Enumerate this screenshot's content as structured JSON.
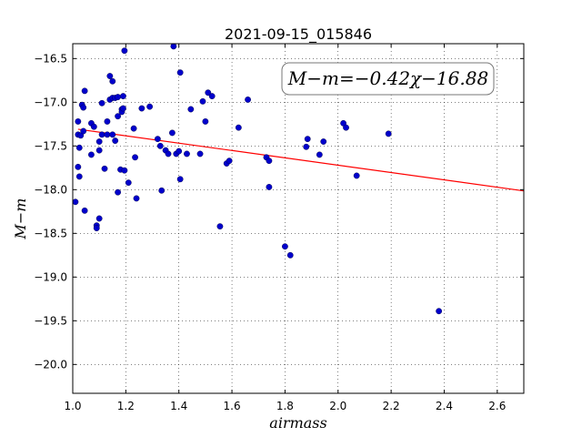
{
  "chart_data": {
    "type": "scatter",
    "title": "2021-09-15_015846",
    "xlabel": "airmass",
    "ylabel": "M−m",
    "xlim": [
      1.0,
      2.7
    ],
    "ylim": [
      -20.33,
      -16.33
    ],
    "y_inverted": true,
    "grid": true,
    "x_ticks": [
      1.0,
      1.2,
      1.4,
      1.6,
      1.8,
      2.0,
      2.2,
      2.4,
      2.6
    ],
    "x_tick_labels": [
      "1.0",
      "1.2",
      "1.4",
      "1.6",
      "1.8",
      "2.0",
      "2.2",
      "2.4",
      "2.6"
    ],
    "y_ticks": [
      -16.5,
      -17.0,
      -17.5,
      -18.0,
      -18.5,
      -19.0,
      -19.5,
      -20.0
    ],
    "y_tick_labels": [
      "−16.5",
      "−17.0",
      "−17.5",
      "−18.0",
      "−18.5",
      "−19.0",
      "−19.5",
      "−20.0"
    ],
    "annotation": "M−m=−0.42χ−16.88",
    "fit": {
      "slope": -0.42,
      "intercept": -16.88,
      "color": "#ff0000"
    },
    "point_color": "#0000cc",
    "points": [
      [
        1.01,
        -18.14
      ],
      [
        1.02,
        -17.74
      ],
      [
        1.02,
        -17.37
      ],
      [
        1.02,
        -17.22
      ],
      [
        1.025,
        -17.85
      ],
      [
        1.025,
        -17.52
      ],
      [
        1.03,
        -17.38
      ],
      [
        1.035,
        -17.03
      ],
      [
        1.04,
        -17.06
      ],
      [
        1.04,
        -17.33
      ],
      [
        1.045,
        -16.87
      ],
      [
        1.045,
        -18.24
      ],
      [
        1.07,
        -17.6
      ],
      [
        1.07,
        -17.24
      ],
      [
        1.08,
        -17.28
      ],
      [
        1.09,
        -18.41
      ],
      [
        1.09,
        -18.44
      ],
      [
        1.1,
        -18.33
      ],
      [
        1.1,
        -17.55
      ],
      [
        1.1,
        -17.45
      ],
      [
        1.11,
        -17.37
      ],
      [
        1.11,
        -17.01
      ],
      [
        1.12,
        -17.76
      ],
      [
        1.13,
        -17.22
      ],
      [
        1.13,
        -17.37
      ],
      [
        1.14,
        -16.7
      ],
      [
        1.14,
        -16.97
      ],
      [
        1.15,
        -16.76
      ],
      [
        1.15,
        -16.95
      ],
      [
        1.15,
        -17.37
      ],
      [
        1.16,
        -17.44
      ],
      [
        1.16,
        -16.95
      ],
      [
        1.17,
        -16.94
      ],
      [
        1.17,
        -17.16
      ],
      [
        1.17,
        -18.03
      ],
      [
        1.18,
        -17.77
      ],
      [
        1.185,
        -17.08
      ],
      [
        1.185,
        -17.11
      ],
      [
        1.19,
        -16.93
      ],
      [
        1.19,
        -17.07
      ],
      [
        1.195,
        -17.78
      ],
      [
        1.195,
        -16.41
      ],
      [
        1.21,
        -17.92
      ],
      [
        1.23,
        -17.3
      ],
      [
        1.235,
        -17.63
      ],
      [
        1.24,
        -18.1
      ],
      [
        1.26,
        -17.07
      ],
      [
        1.29,
        -17.05
      ],
      [
        1.32,
        -17.42
      ],
      [
        1.33,
        -17.5
      ],
      [
        1.335,
        -18.01
      ],
      [
        1.35,
        -17.55
      ],
      [
        1.36,
        -17.59
      ],
      [
        1.375,
        -17.35
      ],
      [
        1.38,
        -16.36
      ],
      [
        1.39,
        -17.59
      ],
      [
        1.4,
        -17.56
      ],
      [
        1.405,
        -16.66
      ],
      [
        1.405,
        -17.88
      ],
      [
        1.43,
        -17.59
      ],
      [
        1.445,
        -17.08
      ],
      [
        1.48,
        -17.59
      ],
      [
        1.49,
        -16.99
      ],
      [
        1.5,
        -17.22
      ],
      [
        1.51,
        -16.89
      ],
      [
        1.525,
        -16.93
      ],
      [
        1.555,
        -18.42
      ],
      [
        1.58,
        -17.7
      ],
      [
        1.59,
        -17.67
      ],
      [
        1.625,
        -17.29
      ],
      [
        1.66,
        -16.97
      ],
      [
        1.73,
        -17.63
      ],
      [
        1.74,
        -17.67
      ],
      [
        1.74,
        -17.97
      ],
      [
        1.8,
        -18.65
      ],
      [
        1.82,
        -18.75
      ],
      [
        1.88,
        -17.51
      ],
      [
        1.885,
        -17.42
      ],
      [
        1.93,
        -17.6
      ],
      [
        1.945,
        -17.45
      ],
      [
        2.02,
        -17.24
      ],
      [
        2.03,
        -17.29
      ],
      [
        2.07,
        -17.84
      ],
      [
        2.19,
        -17.36
      ],
      [
        2.38,
        -19.39
      ]
    ]
  }
}
